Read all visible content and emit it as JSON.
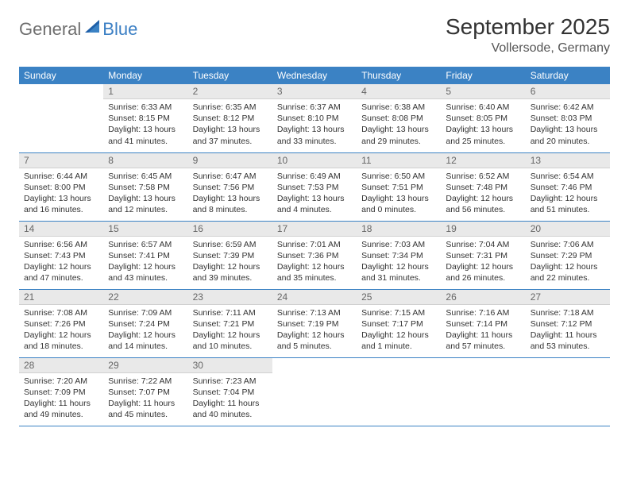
{
  "logo": {
    "general": "General",
    "blue": "Blue"
  },
  "title": "September 2025",
  "location": "Vollersode, Germany",
  "header_bg": "#3b82c4",
  "daynum_bg": "#e9e9e9",
  "day_names": [
    "Sunday",
    "Monday",
    "Tuesday",
    "Wednesday",
    "Thursday",
    "Friday",
    "Saturday"
  ],
  "weeks": [
    [
      {
        "n": "",
        "sunrise": "",
        "sunset": "",
        "daylight": ""
      },
      {
        "n": "1",
        "sunrise": "Sunrise: 6:33 AM",
        "sunset": "Sunset: 8:15 PM",
        "daylight": "Daylight: 13 hours and 41 minutes."
      },
      {
        "n": "2",
        "sunrise": "Sunrise: 6:35 AM",
        "sunset": "Sunset: 8:12 PM",
        "daylight": "Daylight: 13 hours and 37 minutes."
      },
      {
        "n": "3",
        "sunrise": "Sunrise: 6:37 AM",
        "sunset": "Sunset: 8:10 PM",
        "daylight": "Daylight: 13 hours and 33 minutes."
      },
      {
        "n": "4",
        "sunrise": "Sunrise: 6:38 AM",
        "sunset": "Sunset: 8:08 PM",
        "daylight": "Daylight: 13 hours and 29 minutes."
      },
      {
        "n": "5",
        "sunrise": "Sunrise: 6:40 AM",
        "sunset": "Sunset: 8:05 PM",
        "daylight": "Daylight: 13 hours and 25 minutes."
      },
      {
        "n": "6",
        "sunrise": "Sunrise: 6:42 AM",
        "sunset": "Sunset: 8:03 PM",
        "daylight": "Daylight: 13 hours and 20 minutes."
      }
    ],
    [
      {
        "n": "7",
        "sunrise": "Sunrise: 6:44 AM",
        "sunset": "Sunset: 8:00 PM",
        "daylight": "Daylight: 13 hours and 16 minutes."
      },
      {
        "n": "8",
        "sunrise": "Sunrise: 6:45 AM",
        "sunset": "Sunset: 7:58 PM",
        "daylight": "Daylight: 13 hours and 12 minutes."
      },
      {
        "n": "9",
        "sunrise": "Sunrise: 6:47 AM",
        "sunset": "Sunset: 7:56 PM",
        "daylight": "Daylight: 13 hours and 8 minutes."
      },
      {
        "n": "10",
        "sunrise": "Sunrise: 6:49 AM",
        "sunset": "Sunset: 7:53 PM",
        "daylight": "Daylight: 13 hours and 4 minutes."
      },
      {
        "n": "11",
        "sunrise": "Sunrise: 6:50 AM",
        "sunset": "Sunset: 7:51 PM",
        "daylight": "Daylight: 13 hours and 0 minutes."
      },
      {
        "n": "12",
        "sunrise": "Sunrise: 6:52 AM",
        "sunset": "Sunset: 7:48 PM",
        "daylight": "Daylight: 12 hours and 56 minutes."
      },
      {
        "n": "13",
        "sunrise": "Sunrise: 6:54 AM",
        "sunset": "Sunset: 7:46 PM",
        "daylight": "Daylight: 12 hours and 51 minutes."
      }
    ],
    [
      {
        "n": "14",
        "sunrise": "Sunrise: 6:56 AM",
        "sunset": "Sunset: 7:43 PM",
        "daylight": "Daylight: 12 hours and 47 minutes."
      },
      {
        "n": "15",
        "sunrise": "Sunrise: 6:57 AM",
        "sunset": "Sunset: 7:41 PM",
        "daylight": "Daylight: 12 hours and 43 minutes."
      },
      {
        "n": "16",
        "sunrise": "Sunrise: 6:59 AM",
        "sunset": "Sunset: 7:39 PM",
        "daylight": "Daylight: 12 hours and 39 minutes."
      },
      {
        "n": "17",
        "sunrise": "Sunrise: 7:01 AM",
        "sunset": "Sunset: 7:36 PM",
        "daylight": "Daylight: 12 hours and 35 minutes."
      },
      {
        "n": "18",
        "sunrise": "Sunrise: 7:03 AM",
        "sunset": "Sunset: 7:34 PM",
        "daylight": "Daylight: 12 hours and 31 minutes."
      },
      {
        "n": "19",
        "sunrise": "Sunrise: 7:04 AM",
        "sunset": "Sunset: 7:31 PM",
        "daylight": "Daylight: 12 hours and 26 minutes."
      },
      {
        "n": "20",
        "sunrise": "Sunrise: 7:06 AM",
        "sunset": "Sunset: 7:29 PM",
        "daylight": "Daylight: 12 hours and 22 minutes."
      }
    ],
    [
      {
        "n": "21",
        "sunrise": "Sunrise: 7:08 AM",
        "sunset": "Sunset: 7:26 PM",
        "daylight": "Daylight: 12 hours and 18 minutes."
      },
      {
        "n": "22",
        "sunrise": "Sunrise: 7:09 AM",
        "sunset": "Sunset: 7:24 PM",
        "daylight": "Daylight: 12 hours and 14 minutes."
      },
      {
        "n": "23",
        "sunrise": "Sunrise: 7:11 AM",
        "sunset": "Sunset: 7:21 PM",
        "daylight": "Daylight: 12 hours and 10 minutes."
      },
      {
        "n": "24",
        "sunrise": "Sunrise: 7:13 AM",
        "sunset": "Sunset: 7:19 PM",
        "daylight": "Daylight: 12 hours and 5 minutes."
      },
      {
        "n": "25",
        "sunrise": "Sunrise: 7:15 AM",
        "sunset": "Sunset: 7:17 PM",
        "daylight": "Daylight: 12 hours and 1 minute."
      },
      {
        "n": "26",
        "sunrise": "Sunrise: 7:16 AM",
        "sunset": "Sunset: 7:14 PM",
        "daylight": "Daylight: 11 hours and 57 minutes."
      },
      {
        "n": "27",
        "sunrise": "Sunrise: 7:18 AM",
        "sunset": "Sunset: 7:12 PM",
        "daylight": "Daylight: 11 hours and 53 minutes."
      }
    ],
    [
      {
        "n": "28",
        "sunrise": "Sunrise: 7:20 AM",
        "sunset": "Sunset: 7:09 PM",
        "daylight": "Daylight: 11 hours and 49 minutes."
      },
      {
        "n": "29",
        "sunrise": "Sunrise: 7:22 AM",
        "sunset": "Sunset: 7:07 PM",
        "daylight": "Daylight: 11 hours and 45 minutes."
      },
      {
        "n": "30",
        "sunrise": "Sunrise: 7:23 AM",
        "sunset": "Sunset: 7:04 PM",
        "daylight": "Daylight: 11 hours and 40 minutes."
      },
      {
        "n": "",
        "sunrise": "",
        "sunset": "",
        "daylight": ""
      },
      {
        "n": "",
        "sunrise": "",
        "sunset": "",
        "daylight": ""
      },
      {
        "n": "",
        "sunrise": "",
        "sunset": "",
        "daylight": ""
      },
      {
        "n": "",
        "sunrise": "",
        "sunset": "",
        "daylight": ""
      }
    ]
  ]
}
